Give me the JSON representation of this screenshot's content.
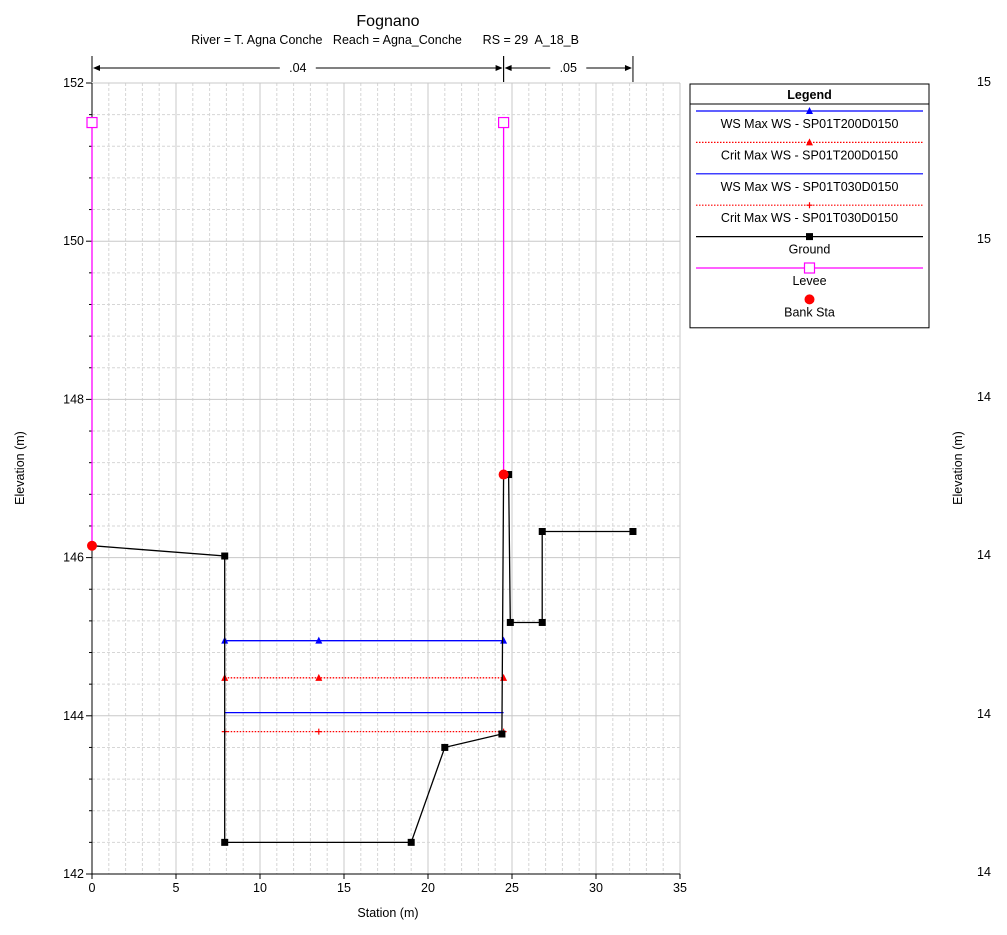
{
  "chart_data": [
    {
      "type": "line",
      "title": "Fognano",
      "subtitle": "River = T. Agna Conche   Reach = Agna_Conche      RS = 29  A_18_B",
      "xlabel": "Station (m)",
      "ylabel": "Elevation (m)",
      "xlim": [
        0,
        35
      ],
      "ylim": [
        142,
        152
      ],
      "x_ticks": [
        "0",
        "5",
        "10",
        "15",
        "20",
        "25",
        "30",
        "35"
      ],
      "y_ticks": [
        "142",
        "144",
        "146",
        "148",
        "150",
        "152"
      ],
      "grid": true,
      "manning_n": [
        {
          "label": ".04",
          "from": 0,
          "to": 24.5
        },
        {
          "label": ".05",
          "from": 24.5,
          "to": 32.2
        }
      ],
      "series": [
        {
          "name": "WS Max WS - SP01T200D0150",
          "color": "#0000ff",
          "dash": "solid",
          "marker": "triangle",
          "x": [
            7.9,
            13.5,
            24.5
          ],
          "y": [
            144.95,
            144.95,
            144.95
          ]
        },
        {
          "name": "Crit Max WS - SP01T200D0150",
          "color": "#ff0000",
          "dash": "dotted",
          "marker": "triangle",
          "x": [
            7.9,
            13.5,
            24.5
          ],
          "y": [
            144.48,
            144.48,
            144.48
          ]
        },
        {
          "name": "WS Max WS - SP01T030D0150",
          "color": "#0000ff",
          "dash": "solid",
          "marker": "none",
          "x": [
            7.9,
            24.5
          ],
          "y": [
            144.04,
            144.04
          ]
        },
        {
          "name": "Crit Max WS - SP01T030D0150",
          "color": "#ff0000",
          "dash": "dotted",
          "marker": "plus",
          "x": [
            7.9,
            13.5,
            24.5
          ],
          "y": [
            143.8,
            143.8,
            143.8
          ]
        },
        {
          "name": "Ground",
          "color": "#000000",
          "dash": "solid",
          "marker": "square",
          "x": [
            0,
            7.9,
            7.9,
            19.0,
            21.0,
            24.4,
            24.5,
            24.8,
            24.9,
            26.8,
            26.8,
            32.2
          ],
          "y": [
            146.15,
            146.02,
            142.4,
            142.4,
            143.6,
            143.77,
            147.05,
            147.05,
            145.18,
            145.18,
            146.33,
            146.33
          ]
        },
        {
          "name": "Levee",
          "color": "#ff00ff",
          "dash": "solid",
          "marker": "open-square",
          "segments": [
            {
              "x": [
                0,
                0
              ],
              "y": [
                146.15,
                151.5
              ]
            },
            {
              "x": [
                24.5,
                24.5
              ],
              "y": [
                147.05,
                151.5
              ]
            }
          ]
        },
        {
          "name": "Bank Sta",
          "color": "#ff0000",
          "marker": "circle",
          "x": [
            0,
            24.5
          ],
          "y": [
            146.15,
            147.05
          ]
        }
      ],
      "legend": {
        "title": "Legend",
        "position": "right",
        "entries": [
          "WS Max WS - SP01T200D0150",
          "Crit Max WS - SP01T200D0150",
          "WS Max WS - SP01T030D0150",
          "Crit Max WS - SP01T030D0150",
          "Ground",
          "Levee",
          "Bank Sta"
        ]
      }
    },
    {
      "type": "line",
      "ylabel": "Elevation (m)",
      "y_tick_fragments": [
        "15",
        "15",
        "14",
        "14",
        "14",
        "14"
      ],
      "position": "cropped at right edge"
    }
  ]
}
